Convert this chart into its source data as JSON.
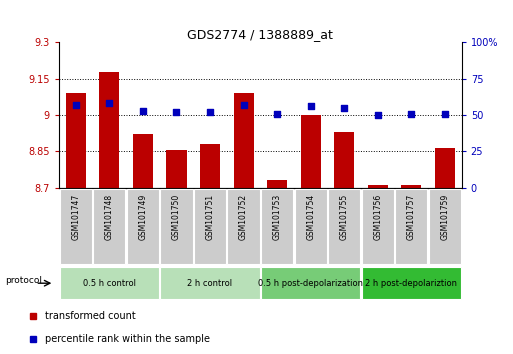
{
  "title": "GDS2774 / 1388889_at",
  "samples": [
    "GSM101747",
    "GSM101748",
    "GSM101749",
    "GSM101750",
    "GSM101751",
    "GSM101752",
    "GSM101753",
    "GSM101754",
    "GSM101755",
    "GSM101756",
    "GSM101757",
    "GSM101759"
  ],
  "transformed_count": [
    9.09,
    9.18,
    8.92,
    8.855,
    8.88,
    9.09,
    8.73,
    9.0,
    8.93,
    8.71,
    8.71,
    8.862
  ],
  "percentile_rank": [
    57,
    58,
    53,
    52,
    52,
    57,
    51,
    56,
    55,
    50,
    51,
    51
  ],
  "ylim_left": [
    8.7,
    9.3
  ],
  "ylim_right": [
    0,
    100
  ],
  "yticks_left": [
    8.7,
    8.85,
    9.0,
    9.15,
    9.3
  ],
  "yticks_right": [
    0,
    25,
    50,
    75,
    100
  ],
  "ytick_labels_left": [
    "8.7",
    "8.85",
    "9",
    "9.15",
    "9.3"
  ],
  "ytick_labels_right": [
    "0",
    "25",
    "50",
    "75",
    "100%"
  ],
  "bar_color": "#bb0000",
  "dot_color": "#0000bb",
  "bar_base": 8.7,
  "groups": [
    {
      "label": "0.5 h control",
      "start": 0,
      "end": 3,
      "color": "#b8e0b8"
    },
    {
      "label": "2 h control",
      "start": 3,
      "end": 6,
      "color": "#b8e0b8"
    },
    {
      "label": "0.5 h post-depolarization",
      "start": 6,
      "end": 9,
      "color": "#77cc77"
    },
    {
      "label": "2 h post-depolariztion",
      "start": 9,
      "end": 12,
      "color": "#33bb33"
    }
  ],
  "tick_bg_color": "#cccccc",
  "protocol_label": "protocol",
  "legend_items": [
    {
      "label": "transformed count",
      "color": "#bb0000",
      "marker": "s"
    },
    {
      "label": "percentile rank within the sample",
      "color": "#0000bb",
      "marker": "s"
    }
  ]
}
